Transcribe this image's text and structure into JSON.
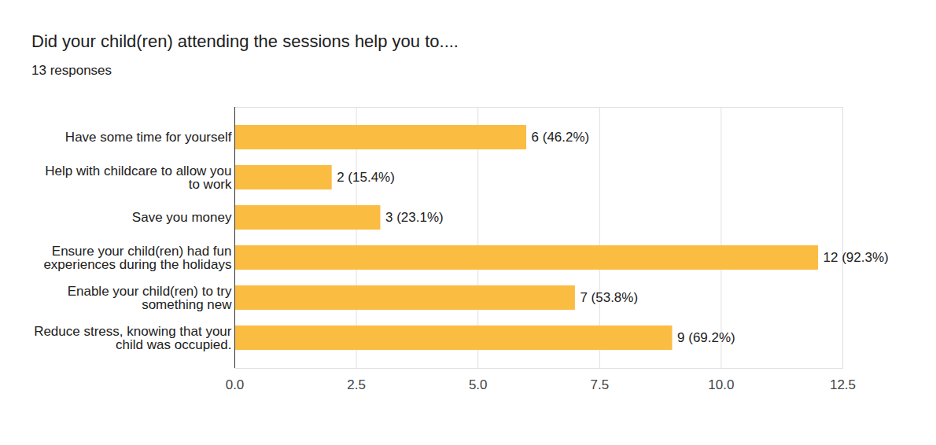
{
  "chart_data": {
    "type": "bar",
    "title": "Did your child(ren) attending the sessions help you to....",
    "subtitle": "13 responses",
    "orientation": "horizontal",
    "categories": [
      "Have some time for yourself",
      "Help with childcare to allow you\nto work",
      "Save you money",
      "Ensure your child(ren) had fun\nexperiences during the holidays",
      "Enable your child(ren) to try\nsomething new",
      "Reduce stress, knowing that your\nchild was occupied."
    ],
    "values": [
      6,
      2,
      3,
      12,
      7,
      9
    ],
    "value_labels": [
      "6 (46.2%)",
      "2 (15.4%)",
      "3 (23.1%)",
      "12 (92.3%)",
      "7 (53.8%)",
      "9 (69.2%)"
    ],
    "data_labels": true,
    "color": "#fbbc42",
    "xlim": [
      0,
      12.5
    ],
    "xticks": [
      {
        "value": 0,
        "label": "0.0"
      },
      2.5,
      {
        "value": 5,
        "label": "5.0"
      },
      7.5,
      {
        "value": 10,
        "label": "10.0"
      },
      12.5
    ],
    "grid": true
  }
}
